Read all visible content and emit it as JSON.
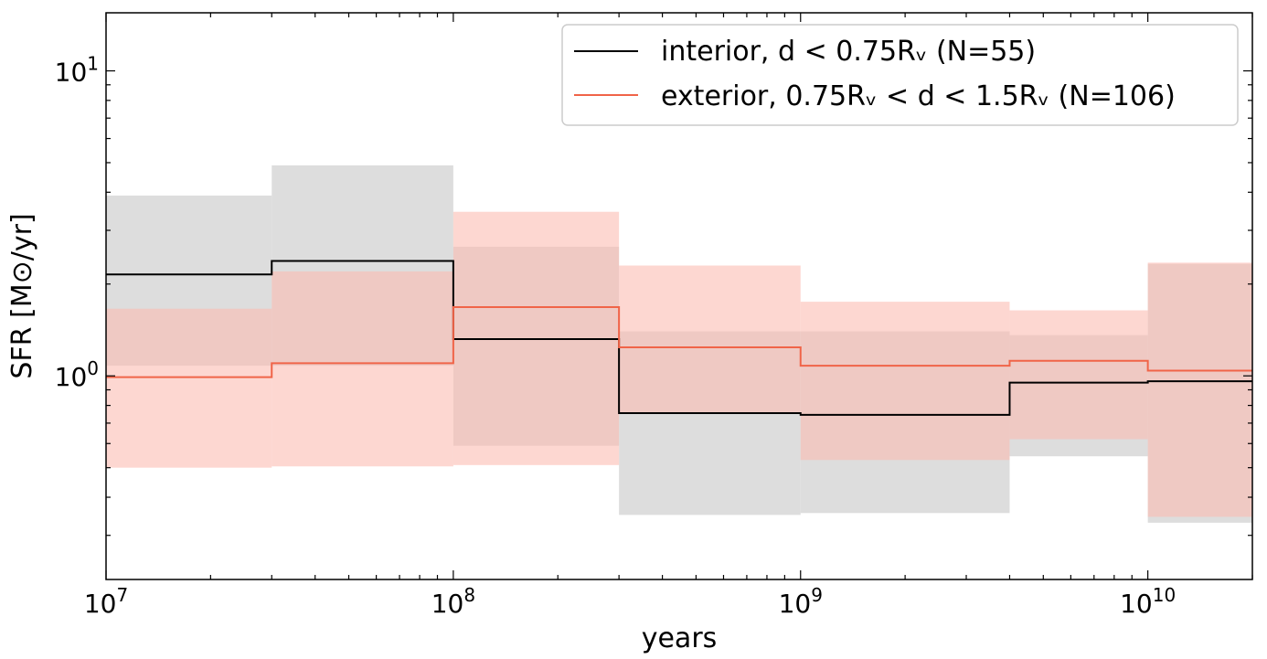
{
  "chart_data": {
    "type": "line",
    "step": true,
    "xscale": "log",
    "yscale": "log",
    "xlabel": "years",
    "ylabel": "SFR [M⊙/yr]",
    "xlim": [
      10000000,
      20000000000
    ],
    "ylim": [
      0.215,
      15.5
    ],
    "x_edges": [
      10000000,
      30000000,
      100000000,
      300000000,
      1000000000,
      4000000000,
      10000000000,
      20000000000
    ],
    "xticks": [
      {
        "value": 10000000,
        "base": "10",
        "exp": "7"
      },
      {
        "value": 100000000,
        "base": "10",
        "exp": "8"
      },
      {
        "value": 1000000000,
        "base": "10",
        "exp": "9"
      },
      {
        "value": 10000000000,
        "base": "10",
        "exp": "10"
      }
    ],
    "yticks": [
      {
        "value": 1,
        "base": "10",
        "exp": "0"
      },
      {
        "value": 10,
        "base": "10",
        "exp": "1"
      }
    ],
    "legend_position": "top-right",
    "series": [
      {
        "name": "interior, d < 0.75Rᵥ (N=55)",
        "color": "#000000",
        "band_color": "#c8c8c8",
        "values": [
          2.15,
          2.38,
          1.32,
          0.755,
          0.745,
          0.95,
          0.96
        ],
        "band_low": [
          1.08,
          1.08,
          0.59,
          0.35,
          0.355,
          0.545,
          0.33
        ],
        "band_high": [
          3.9,
          4.9,
          2.65,
          1.4,
          1.4,
          1.36,
          2.33
        ]
      },
      {
        "name": "exterior, 0.75Rᵥ < d < 1.5Rᵥ (N=106)",
        "color": "#f06448",
        "band_color": "#fcbdb2",
        "values": [
          0.99,
          1.1,
          1.68,
          1.24,
          1.08,
          1.12,
          1.04
        ],
        "band_low": [
          0.5,
          0.505,
          0.51,
          0.755,
          0.53,
          0.62,
          0.345
        ],
        "band_high": [
          1.66,
          2.2,
          3.45,
          2.3,
          1.75,
          1.64,
          2.35
        ]
      }
    ]
  }
}
